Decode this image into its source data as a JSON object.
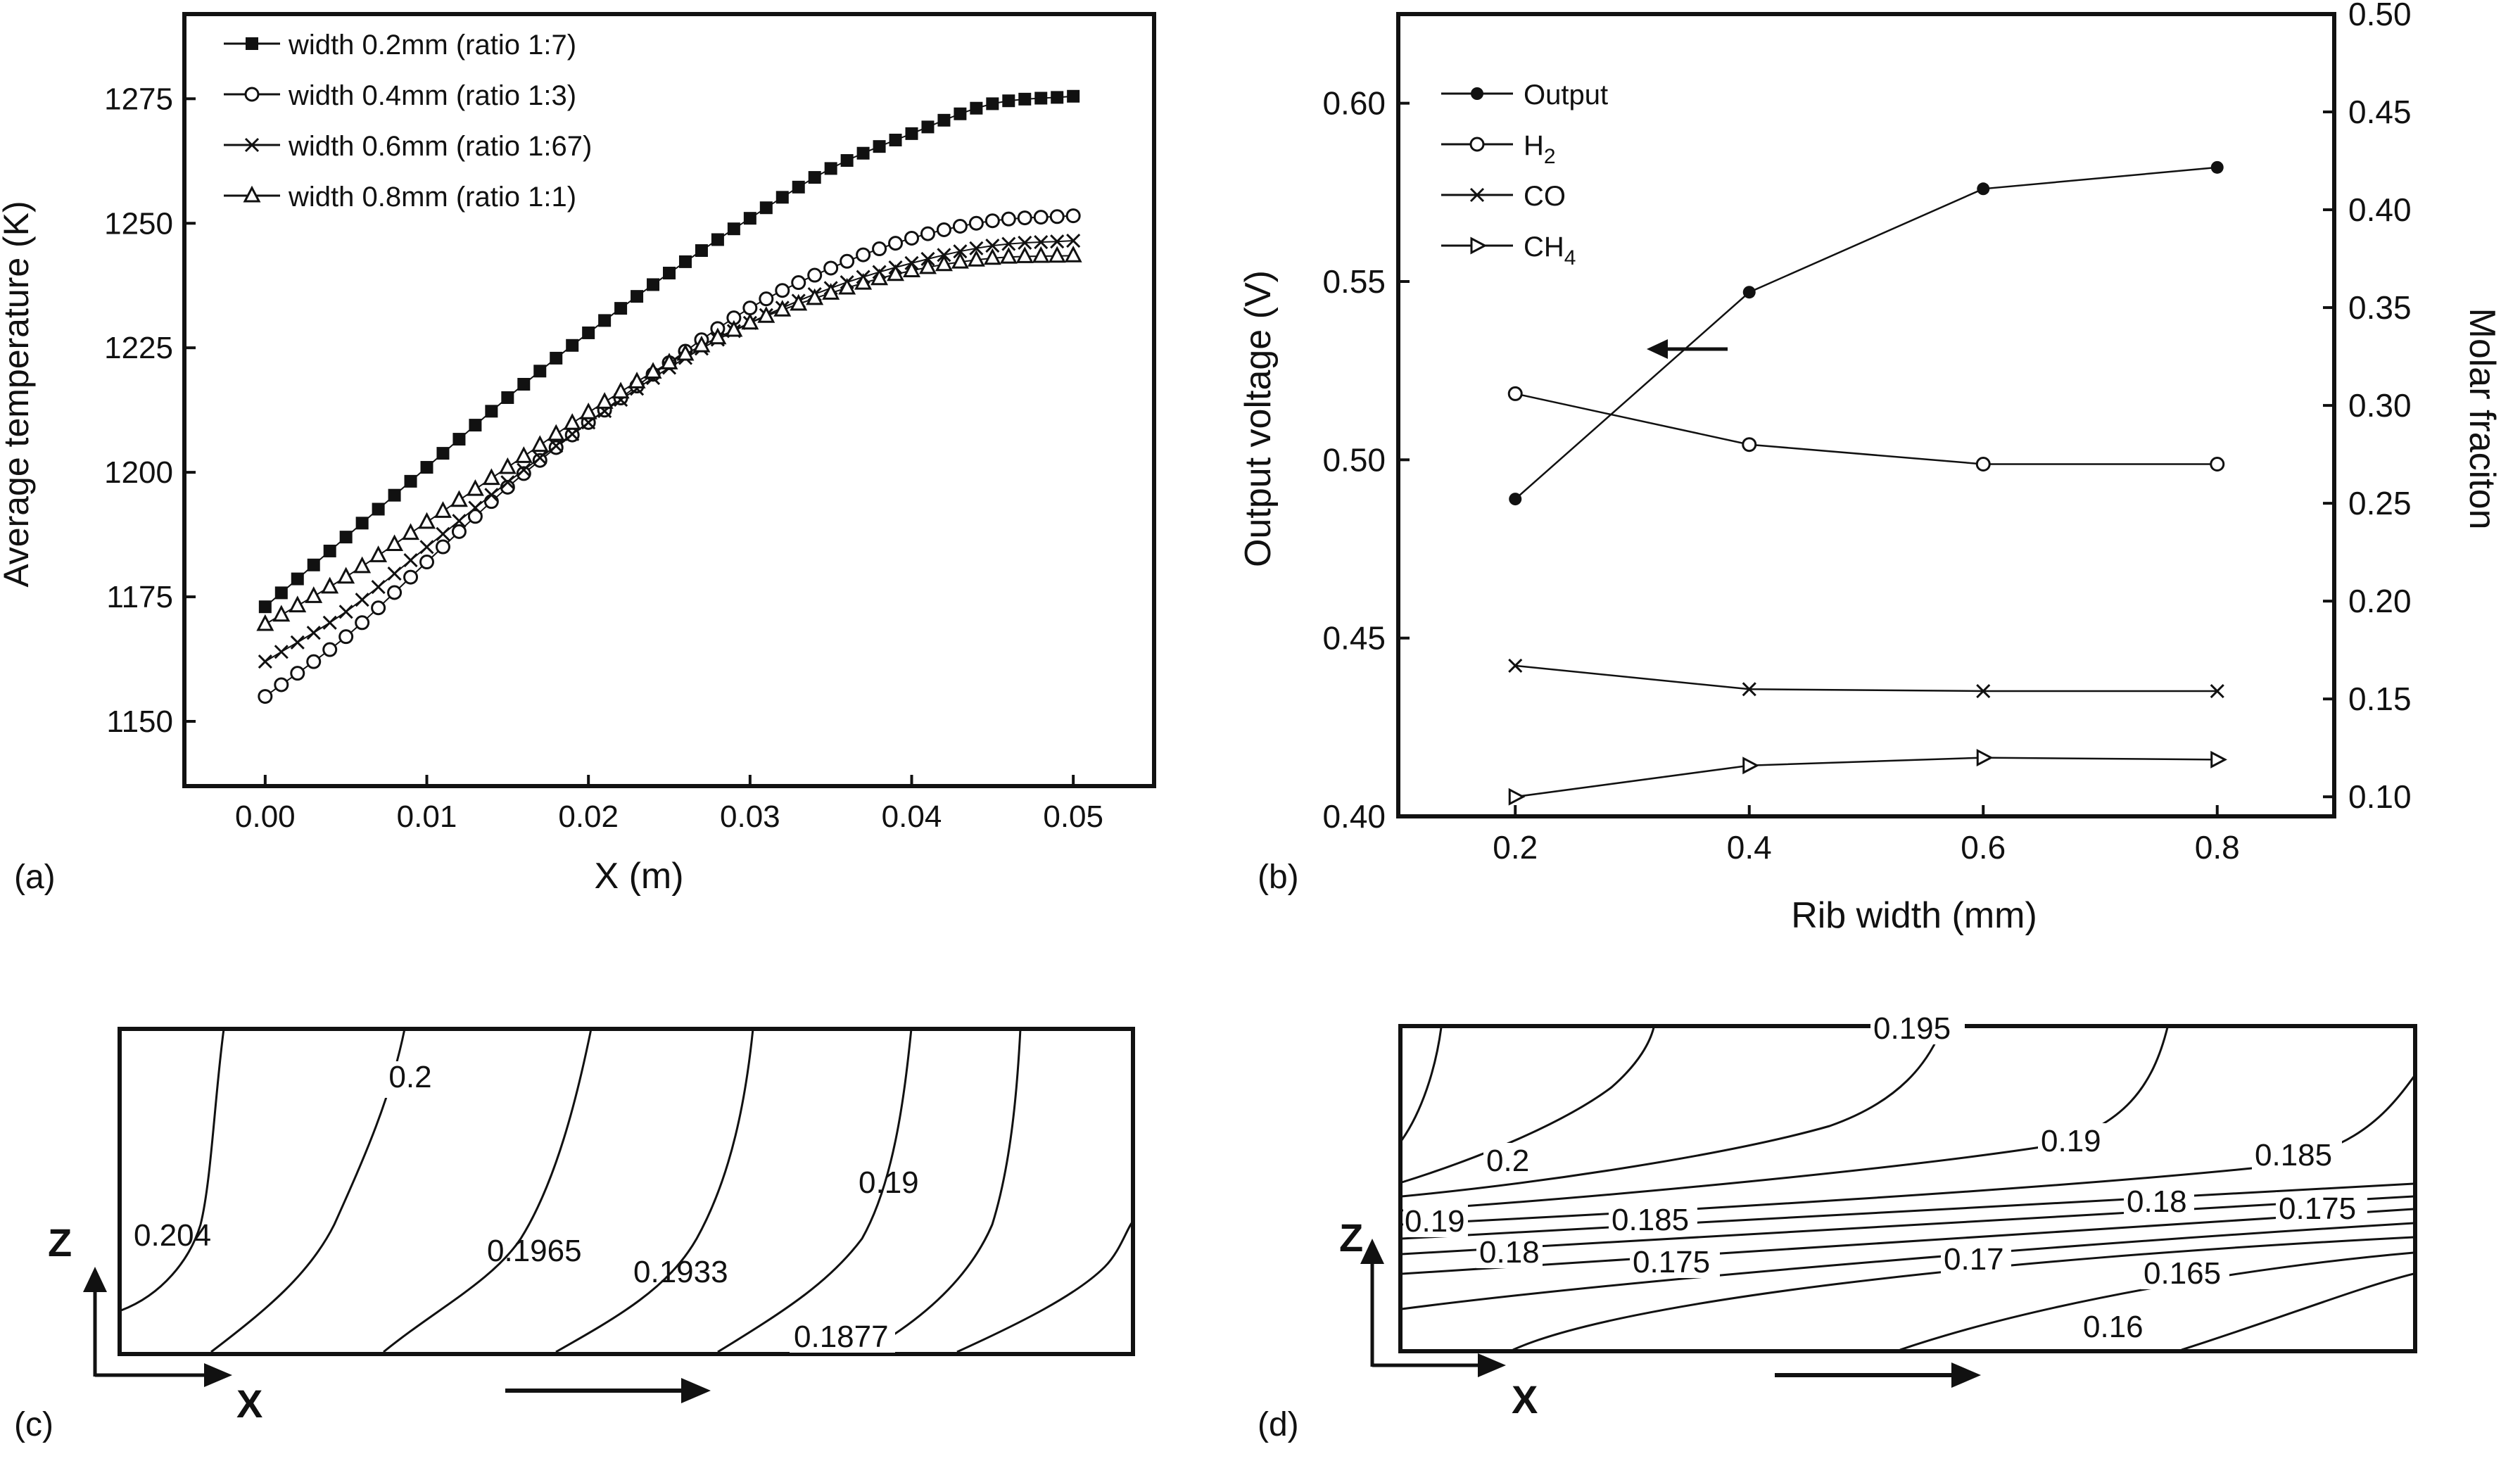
{
  "colors": {
    "ink": "#111111",
    "background": "#ffffff"
  },
  "chart_data": [
    {
      "panel": "(a)",
      "type": "line",
      "xlabel": "X (m)",
      "ylabel": "Average  temperature  (K)",
      "xlim": [
        -0.005,
        0.055
      ],
      "ylim": [
        1137,
        1292
      ],
      "xticks": [
        "0.00",
        "0.01",
        "0.02",
        "0.03",
        "0.04",
        "0.05"
      ],
      "yticks": [
        "1150",
        "1175",
        "1200",
        "1225",
        "1250",
        "1275"
      ],
      "legend_position": "top-left",
      "x": [
        0,
        0.005,
        0.01,
        0.015,
        0.02,
        0.025,
        0.03,
        0.035,
        0.04,
        0.045,
        0.05
      ],
      "series": [
        {
          "name": "width 0.2mm (ratio 1:7)",
          "marker": "filled-square",
          "values": [
            1173,
            1187,
            1201,
            1215,
            1228,
            1240,
            1251,
            1261,
            1268,
            1274,
            1275.5
          ]
        },
        {
          "name": "width 0.4mm (ratio 1:3)",
          "marker": "open-circle",
          "values": [
            1155,
            1167,
            1182,
            1197,
            1210,
            1222,
            1233,
            1241,
            1247,
            1250.5,
            1251.5
          ]
        },
        {
          "name": "width 0.6mm (ratio 1:67)",
          "marker": "cross",
          "values": [
            1162,
            1172,
            1185,
            1198,
            1210,
            1221,
            1230,
            1237,
            1242,
            1245.5,
            1246.5
          ]
        },
        {
          "name": "width 0.8mm (ratio 1:1)",
          "marker": "open-triangle",
          "values": [
            1169.5,
            1179,
            1190,
            1201,
            1212,
            1222,
            1230,
            1236,
            1240.5,
            1243,
            1243.5
          ]
        }
      ]
    },
    {
      "panel": "(b)",
      "type": "line",
      "xlabel": "Rib width (mm)",
      "ylabel_left": "Output voltage (V)",
      "ylabel_right": "Molar fraciton",
      "xlim": [
        0.1,
        0.9
      ],
      "ylim_left": [
        0.4,
        0.625
      ],
      "ylim_right": [
        0.09,
        0.5
      ],
      "xticks": [
        "0.2",
        "0.4",
        "0.6",
        "0.8"
      ],
      "yticks_left": [
        "0.40",
        "0.45",
        "0.50",
        "0.55",
        "0.60"
      ],
      "yticks_right": [
        "0.10",
        "0.15",
        "0.20",
        "0.25",
        "0.30",
        "0.35",
        "0.40",
        "0.45",
        "0.50"
      ],
      "legend_position": "top-left",
      "x": [
        0.2,
        0.4,
        0.6,
        0.8
      ],
      "series": [
        {
          "name": "Output",
          "axis": "left",
          "marker": "filled-circle",
          "values": [
            0.489,
            0.547,
            0.576,
            0.582
          ]
        },
        {
          "name": "H",
          "subscript": "2",
          "axis": "right",
          "marker": "open-circle",
          "values": [
            0.306,
            0.28,
            0.27,
            0.27
          ]
        },
        {
          "name": "CO",
          "axis": "right",
          "marker": "cross",
          "values": [
            0.167,
            0.155,
            0.154,
            0.154
          ]
        },
        {
          "name": "CH",
          "subscript": "4",
          "axis": "right",
          "marker": "right-triangle",
          "values": [
            0.1,
            0.116,
            0.12,
            0.119
          ]
        }
      ],
      "annotation": "arrow pointing left toward Output voltage axis"
    },
    {
      "panel": "(c)",
      "type": "contour",
      "axis_labels": [
        "Z",
        "X"
      ],
      "contour_labels": [
        "0.2",
        "0.204",
        "0.1965",
        "0.1933",
        "0.19",
        "0.1877"
      ],
      "annotation": "flow direction arrow"
    },
    {
      "panel": "(d)",
      "type": "contour",
      "axis_labels": [
        "Z",
        "X"
      ],
      "contour_labels": [
        "0.195",
        "0.2",
        "0.19",
        "0.185",
        "0.19",
        "0.185",
        "0.18",
        "0.175",
        "0.18",
        "0.175",
        "0.17",
        "0.165",
        "0.16"
      ],
      "annotation": "flow direction arrow"
    }
  ]
}
